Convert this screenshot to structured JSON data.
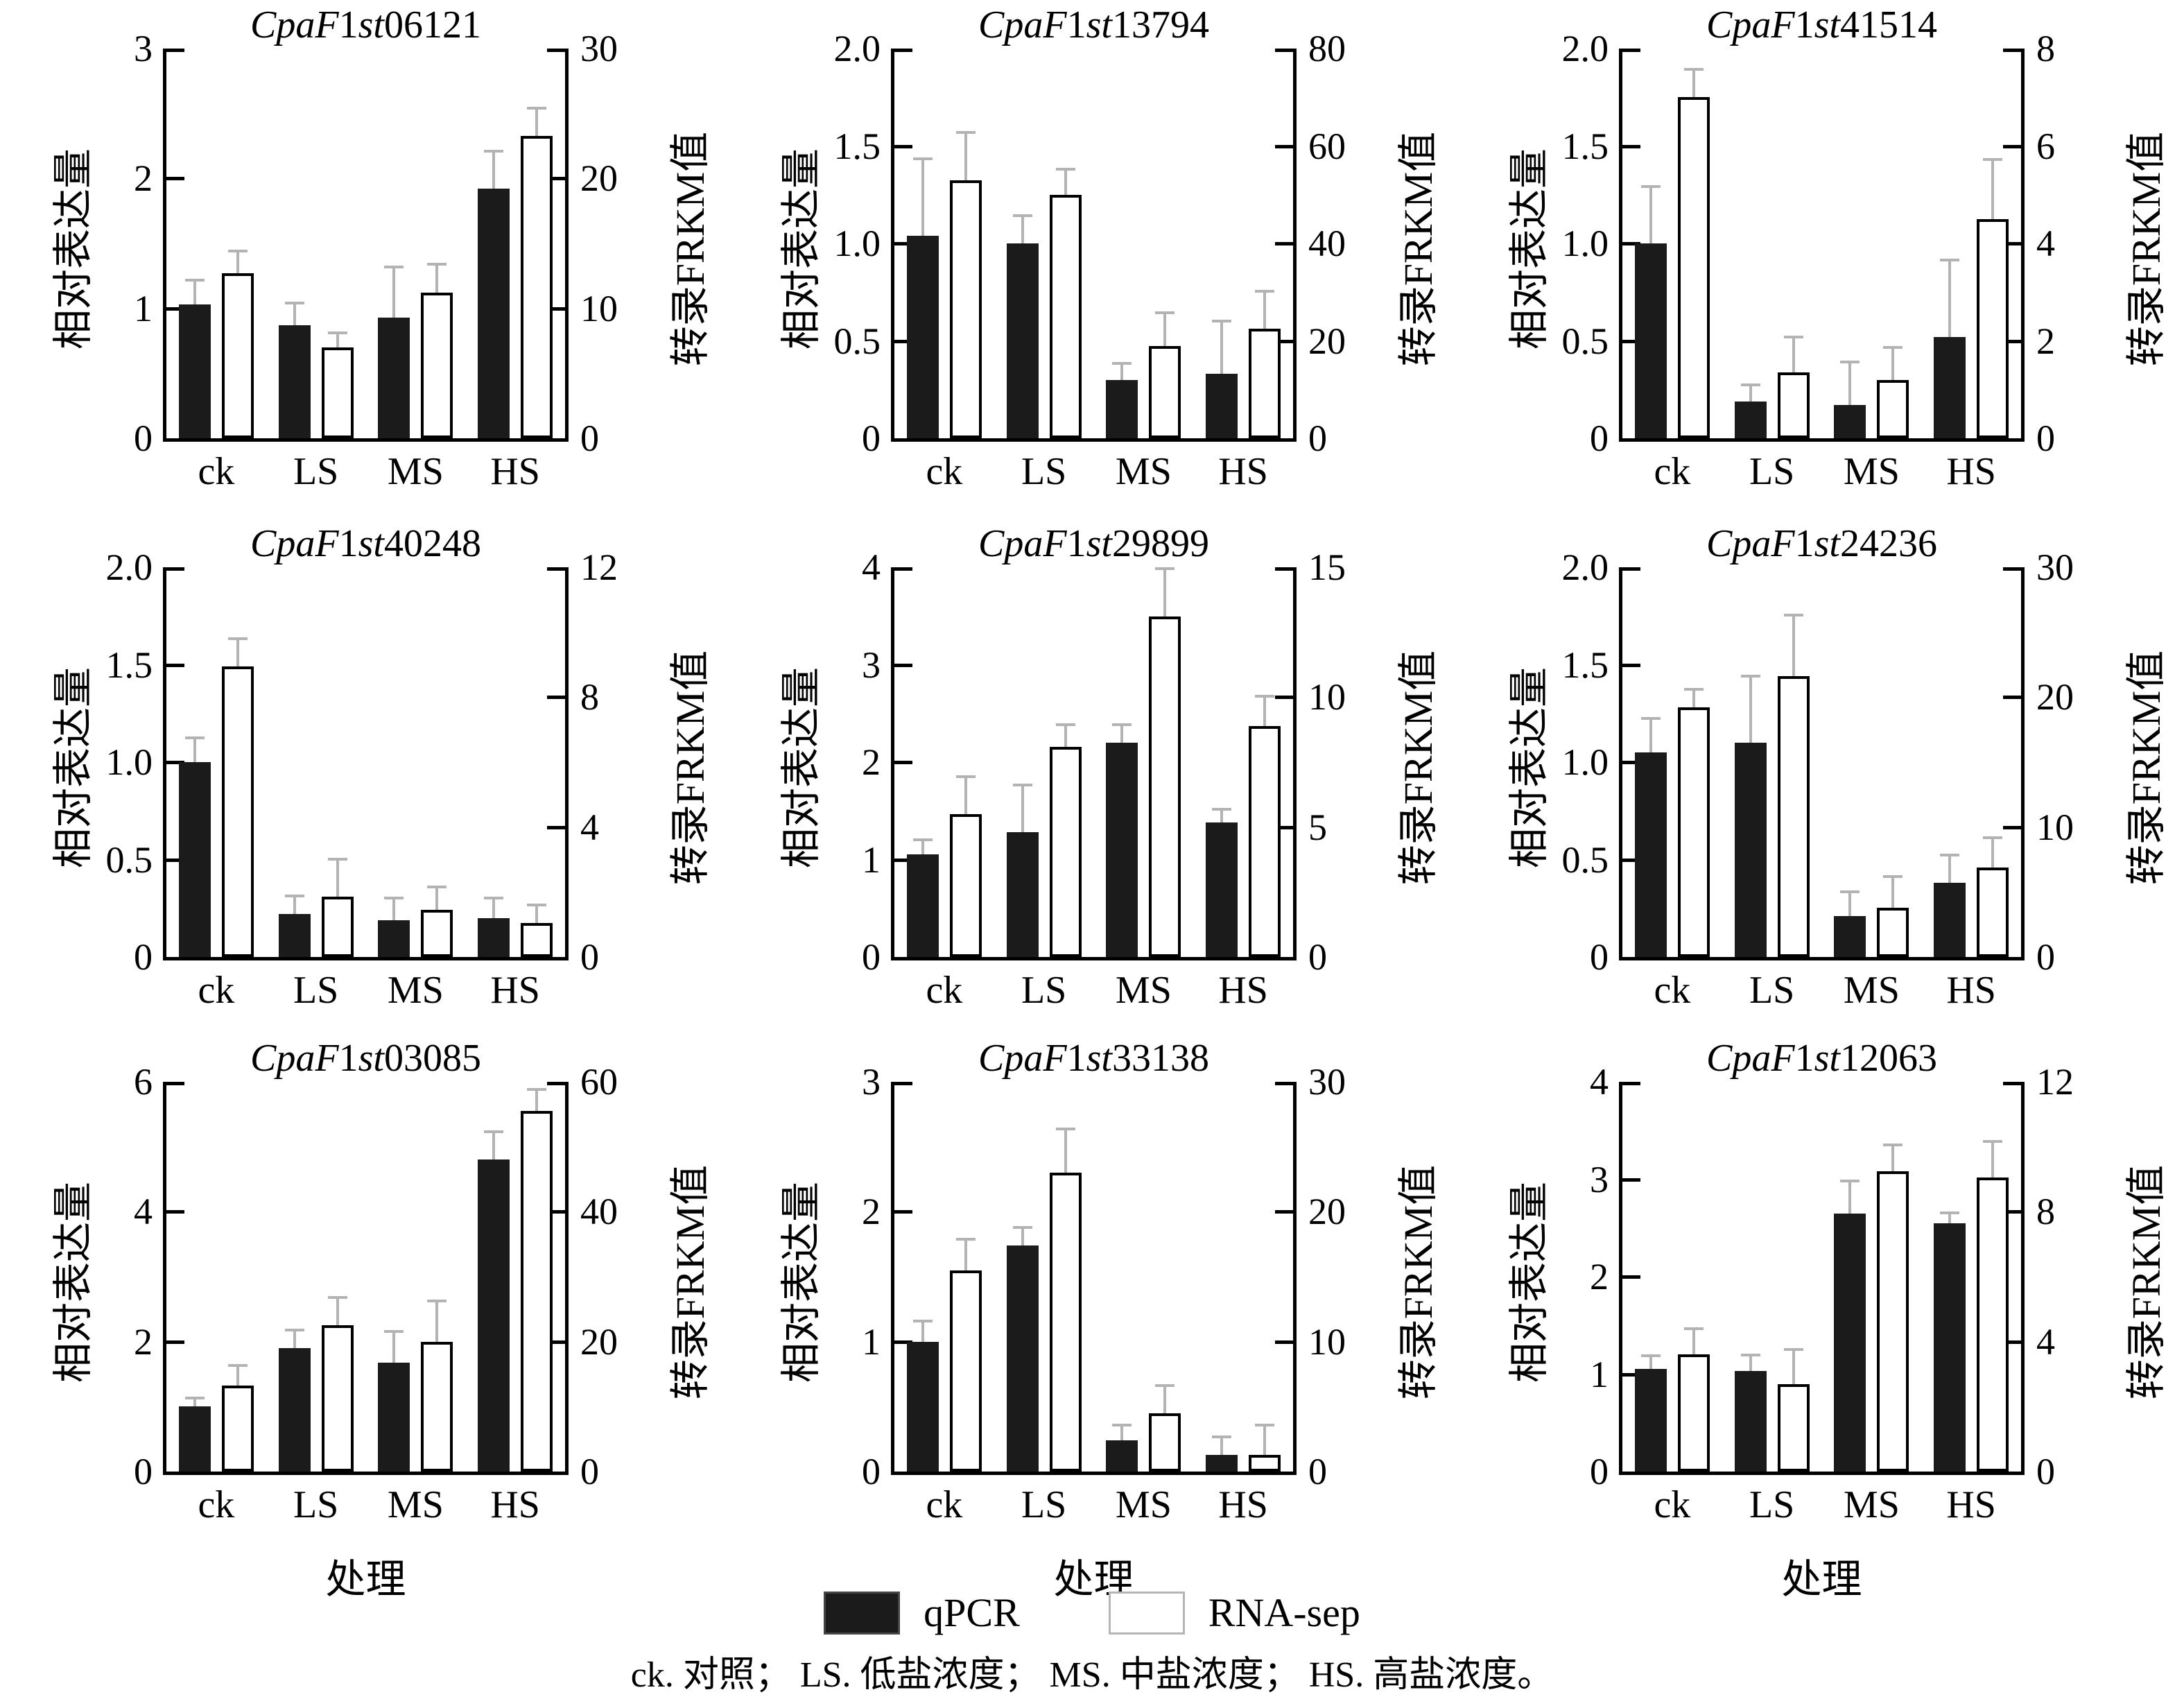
{
  "figure": {
    "ylabel_left": "相对表达量",
    "ylabel_right": "转录FRKM值",
    "xlabel": "处理",
    "categories": [
      "ck",
      "LS",
      "MS",
      "HS"
    ],
    "legend": {
      "qpcr_label": "qPCR",
      "rna_label": "RNA-sep"
    },
    "caption": "ck. 对照； LS. 低盐浓度； MS. 中盐浓度； HS. 高盐浓度。",
    "colors": {
      "qpcr_bar": "#1b1b1b",
      "rna_bar": "#ffffff",
      "bar_stroke": "#000000",
      "error_bar": "#b3b3b3",
      "axis": "#000000"
    }
  },
  "chart_data": [
    {
      "type": "bar",
      "gene": {
        "italic1": "CpaF",
        "plain1": "1",
        "italic2": "st",
        "plain2": "06121"
      },
      "categories": [
        "ck",
        "LS",
        "MS",
        "HS"
      ],
      "left_axis": {
        "label": "相对表达量",
        "ticks": [
          "0",
          "1",
          "2",
          "3"
        ],
        "max": 3
      },
      "right_axis": {
        "label": "转录FRKM值",
        "ticks": [
          "0",
          "10",
          "20",
          "30"
        ],
        "max": 30
      },
      "series": [
        {
          "name": "qPCR",
          "axis": "left",
          "values": [
            1.03,
            0.87,
            0.93,
            1.92
          ],
          "errors": [
            0.2,
            0.18,
            0.4,
            0.3
          ]
        },
        {
          "name": "RNA-sep",
          "axis": "right",
          "values": [
            12.7,
            7.0,
            11.2,
            23.3
          ],
          "errors": [
            1.8,
            1.2,
            2.3,
            2.2
          ]
        }
      ]
    },
    {
      "type": "bar",
      "gene": {
        "italic1": "CpaF",
        "plain1": "1",
        "italic2": "st",
        "plain2": "13794"
      },
      "categories": [
        "ck",
        "LS",
        "MS",
        "HS"
      ],
      "left_axis": {
        "label": "相对表达量",
        "ticks": [
          "0",
          "0.5",
          "1.0",
          "1.5",
          "2.0"
        ],
        "max": 2
      },
      "right_axis": {
        "label": "转录FRKM值",
        "ticks": [
          "0",
          "20",
          "40",
          "60",
          "80"
        ],
        "max": 80
      },
      "series": [
        {
          "name": "qPCR",
          "axis": "left",
          "values": [
            1.04,
            1.0,
            0.3,
            0.33
          ],
          "errors": [
            0.4,
            0.15,
            0.09,
            0.28
          ]
        },
        {
          "name": "RNA-sep",
          "axis": "right",
          "values": [
            53,
            50,
            19,
            22.5
          ],
          "errors": [
            10,
            5.5,
            7,
            8
          ]
        }
      ]
    },
    {
      "type": "bar",
      "gene": {
        "italic1": "CpaF",
        "plain1": "1",
        "italic2": "st",
        "plain2": "41514"
      },
      "categories": [
        "ck",
        "LS",
        "MS",
        "HS"
      ],
      "left_axis": {
        "label": "相对表达量",
        "ticks": [
          "0",
          "0.5",
          "1.0",
          "1.5",
          "2.0"
        ],
        "max": 2
      },
      "right_axis": {
        "label": "转录FRKM值",
        "ticks": [
          "0",
          "2",
          "4",
          "6",
          "8"
        ],
        "max": 8
      },
      "series": [
        {
          "name": "qPCR",
          "axis": "left",
          "values": [
            1.0,
            0.19,
            0.17,
            0.52
          ],
          "errors": [
            0.3,
            0.09,
            0.23,
            0.4
          ]
        },
        {
          "name": "RNA-sep",
          "axis": "right",
          "values": [
            7.0,
            1.35,
            1.2,
            4.5
          ],
          "errors": [
            0.6,
            0.75,
            0.7,
            1.25
          ]
        }
      ]
    },
    {
      "type": "bar",
      "gene": {
        "italic1": "CpaF",
        "plain1": "1",
        "italic2": "st",
        "plain2": "40248"
      },
      "categories": [
        "ck",
        "LS",
        "MS",
        "HS"
      ],
      "left_axis": {
        "label": "相对表达量",
        "ticks": [
          "0",
          "0.5",
          "1.0",
          "1.5",
          "2.0"
        ],
        "max": 2
      },
      "right_axis": {
        "label": "转录FRKM值",
        "ticks": [
          "0",
          "4",
          "8",
          "12"
        ],
        "max": 12
      },
      "series": [
        {
          "name": "qPCR",
          "axis": "left",
          "values": [
            1.0,
            0.22,
            0.19,
            0.2
          ],
          "errors": [
            0.13,
            0.1,
            0.12,
            0.11
          ]
        },
        {
          "name": "RNA-sep",
          "axis": "right",
          "values": [
            8.95,
            1.85,
            1.45,
            1.05
          ],
          "errors": [
            0.9,
            1.2,
            0.75,
            0.6
          ]
        }
      ]
    },
    {
      "type": "bar",
      "gene": {
        "italic1": "CpaF",
        "plain1": "1",
        "italic2": "st",
        "plain2": "29899"
      },
      "categories": [
        "ck",
        "LS",
        "MS",
        "HS"
      ],
      "left_axis": {
        "label": "相对表达量",
        "ticks": [
          "0",
          "1",
          "2",
          "3",
          "4"
        ],
        "max": 4
      },
      "right_axis": {
        "label": "转录FRKM值",
        "ticks": [
          "0",
          "5",
          "10",
          "15"
        ],
        "max": 15
      },
      "series": [
        {
          "name": "qPCR",
          "axis": "left",
          "values": [
            1.05,
            1.28,
            2.2,
            1.38
          ],
          "errors": [
            0.17,
            0.5,
            0.2,
            0.15
          ]
        },
        {
          "name": "RNA-sep",
          "axis": "right",
          "values": [
            5.5,
            8.1,
            13.1,
            8.9
          ],
          "errors": [
            1.5,
            0.9,
            1.9,
            1.2
          ]
        }
      ]
    },
    {
      "type": "bar",
      "gene": {
        "italic1": "CpaF",
        "plain1": "1",
        "italic2": "st",
        "plain2": "24236"
      },
      "categories": [
        "ck",
        "LS",
        "MS",
        "HS"
      ],
      "left_axis": {
        "label": "相对表达量",
        "ticks": [
          "0",
          "0.5",
          "1.0",
          "1.5",
          "2.0"
        ],
        "max": 2
      },
      "right_axis": {
        "label": "转录FRKM值",
        "ticks": [
          "0",
          "10",
          "20",
          "30"
        ],
        "max": 30
      },
      "series": [
        {
          "name": "qPCR",
          "axis": "left",
          "values": [
            1.05,
            1.1,
            0.21,
            0.38
          ],
          "errors": [
            0.18,
            0.35,
            0.13,
            0.15
          ]
        },
        {
          "name": "RNA-sep",
          "axis": "right",
          "values": [
            19.2,
            21.6,
            3.8,
            6.9
          ],
          "errors": [
            1.5,
            4.8,
            2.5,
            2.4
          ]
        }
      ]
    },
    {
      "type": "bar",
      "gene": {
        "italic1": "CpaF",
        "plain1": "1",
        "italic2": "st",
        "plain2": "03085"
      },
      "categories": [
        "ck",
        "LS",
        "MS",
        "HS"
      ],
      "left_axis": {
        "label": "相对表达量",
        "ticks": [
          "0",
          "2",
          "4",
          "6"
        ],
        "max": 6
      },
      "right_axis": {
        "label": "转录FRKM值",
        "ticks": [
          "0",
          "20",
          "40",
          "60"
        ],
        "max": 60
      },
      "series": [
        {
          "name": "qPCR",
          "axis": "left",
          "values": [
            1.0,
            1.9,
            1.68,
            4.8
          ],
          "errors": [
            0.15,
            0.3,
            0.5,
            0.45
          ]
        },
        {
          "name": "RNA-sep",
          "axis": "right",
          "values": [
            13.2,
            22.5,
            20,
            55.5
          ],
          "errors": [
            3.3,
            4.5,
            6.5,
            3.5
          ]
        }
      ]
    },
    {
      "type": "bar",
      "gene": {
        "italic1": "CpaF",
        "plain1": "1",
        "italic2": "st",
        "plain2": "33138"
      },
      "categories": [
        "ck",
        "LS",
        "MS",
        "HS"
      ],
      "left_axis": {
        "label": "相对表达量",
        "ticks": [
          "0",
          "1",
          "2",
          "3"
        ],
        "max": 3
      },
      "right_axis": {
        "label": "转录FRKM值",
        "ticks": [
          "0",
          "10",
          "20",
          "30"
        ],
        "max": 30
      },
      "series": [
        {
          "name": "qPCR",
          "axis": "left",
          "values": [
            1.0,
            1.74,
            0.24,
            0.13
          ],
          "errors": [
            0.17,
            0.15,
            0.13,
            0.15
          ]
        },
        {
          "name": "RNA-sep",
          "axis": "right",
          "values": [
            15.5,
            23,
            4.5,
            1.3
          ],
          "errors": [
            2.5,
            3.5,
            2.2,
            2.4
          ]
        }
      ]
    },
    {
      "type": "bar",
      "gene": {
        "italic1": "CpaF",
        "plain1": "1",
        "italic2": "st",
        "plain2": "12063"
      },
      "categories": [
        "ck",
        "LS",
        "MS",
        "HS"
      ],
      "left_axis": {
        "label": "相对表达量",
        "ticks": [
          "0",
          "1",
          "2",
          "3",
          "4"
        ],
        "max": 4
      },
      "right_axis": {
        "label": "转录FRKM值",
        "ticks": [
          "0",
          "4",
          "8",
          "12"
        ],
        "max": 12
      },
      "series": [
        {
          "name": "qPCR",
          "axis": "left",
          "values": [
            1.05,
            1.03,
            2.65,
            2.55
          ],
          "errors": [
            0.15,
            0.18,
            0.35,
            0.12
          ]
        },
        {
          "name": "RNA-sep",
          "axis": "right",
          "values": [
            3.6,
            2.7,
            9.25,
            9.05
          ],
          "errors": [
            0.85,
            1.1,
            0.85,
            1.15
          ]
        }
      ]
    }
  ]
}
